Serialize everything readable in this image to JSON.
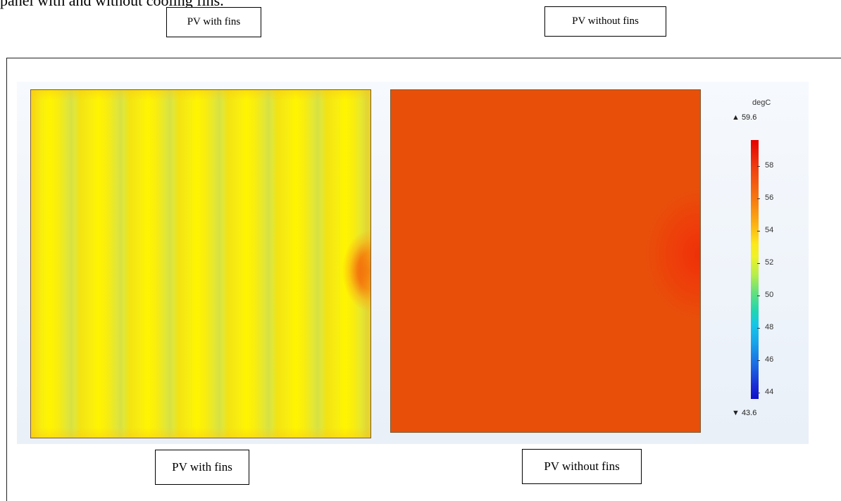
{
  "caption_fragment": "panel with and without cooling fins.",
  "labels": {
    "top_left": "PV with fins",
    "top_right": "PV without fins",
    "bottom_left": "PV with fins",
    "bottom_right": "PV without fins"
  },
  "legend": {
    "unit": "degC",
    "max": "▲ 59.6",
    "min": "▼ 43.6",
    "ticks": [
      "58",
      "56",
      "54",
      "52",
      "50",
      "48",
      "46",
      "44"
    ]
  },
  "colors": {
    "with_fins_base": "#f5e80f",
    "with_fins_hotspot": "#f05a0a",
    "without_fins_base": "#e8500a",
    "without_fins_hotspot": "#ee3008"
  }
}
